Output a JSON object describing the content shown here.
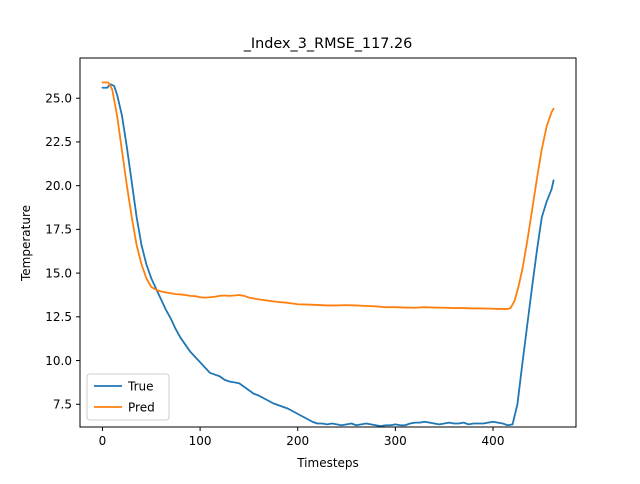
{
  "chart_data": {
    "type": "line",
    "title": "_Index_3_RMSE_117.26",
    "xlabel": "Timesteps",
    "ylabel": "Temperature",
    "xlim": [
      -23,
      485
    ],
    "ylim": [
      6.2,
      27.3
    ],
    "xticks": [
      0,
      100,
      200,
      300,
      400
    ],
    "yticks": [
      7.5,
      10.0,
      12.5,
      15.0,
      17.5,
      20.0,
      22.5,
      25.0
    ],
    "xtick_labels": [
      "0",
      "100",
      "200",
      "300",
      "400"
    ],
    "ytick_labels": [
      "7.5",
      "10.0",
      "12.5",
      "15.0",
      "17.5",
      "20.0",
      "22.5",
      "25.0"
    ],
    "grid": false,
    "legend": "lower-left",
    "series": [
      {
        "name": "True",
        "color": "#1f77b4",
        "x": [
          0,
          5,
          8,
          12,
          15,
          20,
          25,
          30,
          35,
          40,
          45,
          50,
          55,
          60,
          65,
          70,
          75,
          80,
          85,
          90,
          95,
          100,
          105,
          110,
          115,
          120,
          125,
          130,
          135,
          140,
          145,
          150,
          155,
          160,
          165,
          170,
          175,
          180,
          185,
          190,
          195,
          200,
          205,
          210,
          215,
          220,
          225,
          230,
          235,
          240,
          245,
          250,
          255,
          260,
          265,
          270,
          275,
          280,
          285,
          290,
          295,
          300,
          305,
          310,
          315,
          320,
          325,
          330,
          335,
          340,
          345,
          350,
          355,
          360,
          365,
          370,
          375,
          380,
          385,
          390,
          395,
          400,
          405,
          410,
          415,
          420,
          425,
          430,
          435,
          440,
          445,
          450,
          455,
          460,
          462
        ],
        "values": [
          25.6,
          25.6,
          25.8,
          25.7,
          25.2,
          24.0,
          22.2,
          20.2,
          18.2,
          16.6,
          15.5,
          14.7,
          14.1,
          13.5,
          12.9,
          12.4,
          11.8,
          11.3,
          10.9,
          10.5,
          10.2,
          9.9,
          9.6,
          9.3,
          9.2,
          9.1,
          8.9,
          8.8,
          8.75,
          8.7,
          8.5,
          8.3,
          8.1,
          8.0,
          7.85,
          7.7,
          7.55,
          7.45,
          7.35,
          7.25,
          7.1,
          6.95,
          6.8,
          6.65,
          6.5,
          6.4,
          6.4,
          6.35,
          6.4,
          6.35,
          6.3,
          6.35,
          6.4,
          6.3,
          6.35,
          6.4,
          6.35,
          6.3,
          6.25,
          6.3,
          6.3,
          6.35,
          6.3,
          6.3,
          6.4,
          6.45,
          6.45,
          6.5,
          6.45,
          6.4,
          6.35,
          6.4,
          6.45,
          6.4,
          6.4,
          6.45,
          6.35,
          6.4,
          6.4,
          6.4,
          6.45,
          6.5,
          6.45,
          6.4,
          6.3,
          6.35,
          7.5,
          9.8,
          12.0,
          14.2,
          16.3,
          18.2,
          19.1,
          19.8,
          20.3
        ]
      },
      {
        "name": "Pred",
        "color": "#ff7f0e",
        "x": [
          0,
          3,
          6,
          10,
          15,
          20,
          25,
          30,
          35,
          40,
          45,
          50,
          55,
          60,
          65,
          70,
          75,
          80,
          85,
          90,
          95,
          100,
          105,
          110,
          115,
          120,
          125,
          130,
          135,
          140,
          145,
          150,
          160,
          170,
          180,
          190,
          200,
          210,
          220,
          230,
          240,
          250,
          260,
          270,
          280,
          290,
          300,
          310,
          320,
          330,
          340,
          350,
          360,
          370,
          380,
          390,
          400,
          405,
          410,
          415,
          418,
          422,
          426,
          430,
          435,
          440,
          445,
          450,
          455,
          460,
          462
        ],
        "values": [
          25.9,
          25.9,
          25.9,
          25.5,
          24.0,
          22.0,
          20.0,
          18.2,
          16.6,
          15.5,
          14.7,
          14.2,
          14.05,
          13.95,
          13.9,
          13.85,
          13.8,
          13.78,
          13.75,
          13.7,
          13.68,
          13.62,
          13.6,
          13.62,
          13.65,
          13.7,
          13.72,
          13.7,
          13.72,
          13.75,
          13.7,
          13.6,
          13.5,
          13.42,
          13.35,
          13.3,
          13.22,
          13.2,
          13.18,
          13.15,
          13.15,
          13.17,
          13.15,
          13.12,
          13.1,
          13.05,
          13.05,
          13.03,
          13.02,
          13.05,
          13.03,
          13.02,
          13.0,
          13.0,
          12.98,
          12.98,
          12.96,
          12.95,
          12.95,
          12.95,
          13.0,
          13.4,
          14.2,
          15.2,
          16.8,
          18.6,
          20.4,
          22.1,
          23.4,
          24.2,
          24.4
        ]
      }
    ]
  }
}
